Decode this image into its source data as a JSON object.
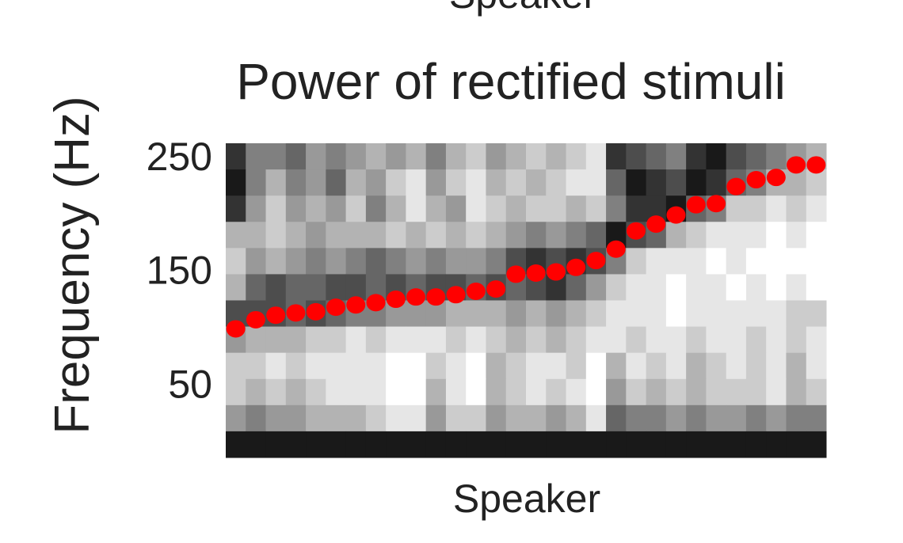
{
  "top_label": "Speaker",
  "chart_data": {
    "type": "heatmap",
    "title": "Power of rectified stimuli",
    "xlabel": "Speaker",
    "ylabel": "Frequency (Hz)",
    "categories": [
      null,
      null,
      null,
      null,
      null,
      null,
      null,
      null,
      null,
      null,
      null,
      null,
      null,
      null,
      null,
      null,
      null,
      null,
      null,
      null,
      null,
      null,
      null,
      null,
      null,
      null,
      null,
      null,
      null,
      null
    ],
    "ylim": [
      -15,
      261
    ],
    "yticks": [
      50,
      150,
      250
    ],
    "z": [
      [
        0.8,
        0.5,
        0.5,
        0.6,
        0.4,
        0.5,
        0.4,
        0.3,
        0.4,
        0.3,
        0.5,
        0.3,
        0.2,
        0.4,
        0.3,
        0.2,
        0.3,
        0.2,
        0.1,
        0.8,
        0.7,
        0.6,
        0.5,
        0.8,
        0.9,
        0.7,
        0.6,
        0.5,
        0.4,
        0.3
      ],
      [
        0.9,
        0.5,
        0.3,
        0.5,
        0.4,
        0.6,
        0.3,
        0.4,
        0.2,
        0.1,
        0.4,
        0.2,
        0.1,
        0.3,
        0.2,
        0.3,
        0.2,
        0.1,
        0.1,
        0.6,
        0.9,
        0.8,
        0.7,
        0.9,
        0.8,
        0.6,
        0.5,
        0.3,
        0.3,
        0.2
      ],
      [
        0.8,
        0.4,
        0.2,
        0.4,
        0.3,
        0.4,
        0.2,
        0.5,
        0.3,
        0.1,
        0.3,
        0.4,
        0.1,
        0.2,
        0.3,
        0.2,
        0.2,
        0.3,
        0.2,
        0.5,
        0.8,
        0.8,
        0.9,
        0.6,
        0.5,
        0.2,
        0.2,
        0.1,
        0.2,
        0.1
      ],
      [
        0.3,
        0.3,
        0.2,
        0.3,
        0.4,
        0.3,
        0.3,
        0.3,
        0.2,
        0.3,
        0.2,
        0.3,
        0.2,
        0.3,
        0.4,
        0.5,
        0.4,
        0.5,
        0.6,
        0.9,
        0.7,
        0.6,
        0.3,
        0.2,
        0.1,
        0.1,
        0.1,
        0.0,
        0.1,
        0.0
      ],
      [
        0.2,
        0.4,
        0.3,
        0.4,
        0.5,
        0.4,
        0.5,
        0.6,
        0.5,
        0.4,
        0.5,
        0.4,
        0.4,
        0.5,
        0.7,
        0.8,
        0.7,
        0.8,
        0.7,
        0.5,
        0.2,
        0.1,
        0.1,
        0.1,
        0.0,
        0.1,
        0.0,
        0.0,
        0.0,
        0.0
      ],
      [
        0.3,
        0.6,
        0.7,
        0.6,
        0.6,
        0.7,
        0.7,
        0.6,
        0.7,
        0.6,
        0.7,
        0.7,
        0.6,
        0.7,
        0.6,
        0.7,
        0.8,
        0.6,
        0.4,
        0.2,
        0.1,
        0.1,
        0.0,
        0.1,
        0.1,
        0.0,
        0.1,
        0.0,
        0.1,
        0.0
      ],
      [
        0.7,
        0.7,
        0.7,
        0.6,
        0.7,
        0.6,
        0.5,
        0.5,
        0.4,
        0.4,
        0.4,
        0.3,
        0.3,
        0.3,
        0.4,
        0.3,
        0.4,
        0.3,
        0.2,
        0.1,
        0.1,
        0.1,
        0.0,
        0.1,
        0.1,
        0.1,
        0.1,
        0.1,
        0.2,
        0.2
      ],
      [
        0.4,
        0.3,
        0.3,
        0.3,
        0.2,
        0.2,
        0.1,
        0.2,
        0.1,
        0.1,
        0.1,
        0.2,
        0.1,
        0.2,
        0.3,
        0.2,
        0.3,
        0.2,
        0.1,
        0.1,
        0.2,
        0.1,
        0.1,
        0.2,
        0.1,
        0.1,
        0.2,
        0.1,
        0.2,
        0.1
      ],
      [
        0.2,
        0.2,
        0.1,
        0.2,
        0.1,
        0.1,
        0.1,
        0.1,
        0.0,
        0.0,
        0.2,
        0.1,
        0.0,
        0.3,
        0.2,
        0.1,
        0.1,
        0.2,
        0.0,
        0.3,
        0.1,
        0.2,
        0.1,
        0.3,
        0.2,
        0.1,
        0.2,
        0.1,
        0.3,
        0.1
      ],
      [
        0.2,
        0.3,
        0.2,
        0.3,
        0.2,
        0.1,
        0.1,
        0.1,
        0.0,
        0.0,
        0.3,
        0.1,
        0.0,
        0.3,
        0.2,
        0.1,
        0.2,
        0.1,
        0.0,
        0.4,
        0.2,
        0.3,
        0.2,
        0.3,
        0.2,
        0.2,
        0.2,
        0.1,
        0.3,
        0.2
      ],
      [
        0.4,
        0.5,
        0.4,
        0.4,
        0.3,
        0.3,
        0.3,
        0.2,
        0.1,
        0.1,
        0.4,
        0.2,
        0.2,
        0.4,
        0.3,
        0.3,
        0.4,
        0.3,
        0.1,
        0.6,
        0.5,
        0.5,
        0.4,
        0.5,
        0.4,
        0.4,
        0.5,
        0.4,
        0.5,
        0.5
      ],
      [
        0.9,
        0.9,
        0.9,
        0.9,
        0.9,
        0.9,
        0.9,
        0.9,
        0.9,
        0.9,
        0.9,
        0.9,
        0.9,
        0.9,
        0.9,
        0.9,
        0.9,
        0.9,
        0.9,
        0.9,
        0.9,
        0.9,
        0.9,
        0.9,
        0.9,
        0.9,
        0.9,
        0.9,
        0.9,
        0.9
      ]
    ],
    "points": {
      "color": "#ff0000",
      "values": [
        98,
        106,
        110,
        112,
        113,
        117,
        119,
        121,
        124,
        126,
        126,
        128,
        131,
        133,
        146,
        147,
        148,
        152,
        158,
        168,
        184,
        190,
        198,
        207,
        208,
        223,
        229,
        231,
        242,
        242
      ]
    }
  }
}
